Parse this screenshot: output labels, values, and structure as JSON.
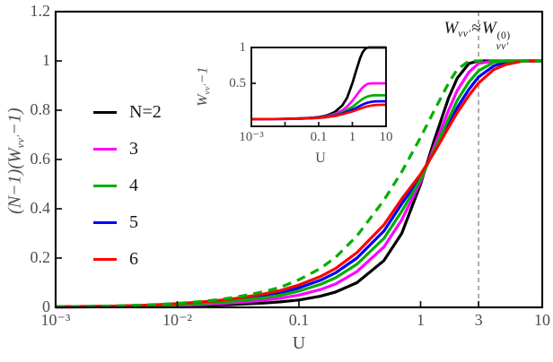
{
  "figure": {
    "background": "#ffffff",
    "axis_color": "#111111",
    "tick_label_color": "#4d4d4d"
  },
  "labels": {
    "main_ylabel": {
      "pre": "(N−1)(W",
      "sub": "νν′",
      "post": "−1)"
    },
    "main_xlabel": "U",
    "inset_ylabel": {
      "pre": "W",
      "sub": "νν′",
      "post": "−1"
    },
    "inset_xlabel": "U"
  },
  "annotation": {
    "w1": "W",
    "sub1": "νν′",
    "approx": "≈",
    "w2": "W",
    "sup2": "(0)",
    "sub2": "νν′"
  },
  "legend": {
    "items": [
      {
        "label": "N=2",
        "color": "#000000"
      },
      {
        "label": "3",
        "color": "#ff00ff"
      },
      {
        "label": "4",
        "color": "#00ae00"
      },
      {
        "label": "5",
        "color": "#0000ff"
      },
      {
        "label": "6",
        "color": "#ff0000"
      }
    ]
  },
  "chart_data": [
    {
      "id": "main",
      "type": "line",
      "title": "",
      "xlabel": "U",
      "ylabel": "(N−1)(Wνν′−1)",
      "xscale": "log",
      "xlim": [
        0.001,
        10
      ],
      "ylim": [
        0,
        1.2
      ],
      "grid": false,
      "legend_position": "upper-left-inside",
      "xticks": [
        {
          "x": 0.001,
          "label": "10⁻³"
        },
        {
          "x": 0.01,
          "label": "10⁻²"
        },
        {
          "x": 0.1,
          "label": "0.1"
        },
        {
          "x": 1,
          "label": "1"
        },
        {
          "x": 3,
          "label": "3"
        },
        {
          "x": 10,
          "label": "10"
        }
      ],
      "yticks": [
        {
          "y": 0,
          "label": "0"
        },
        {
          "y": 0.2,
          "label": "0.2"
        },
        {
          "y": 0.4,
          "label": "0.4"
        },
        {
          "y": 0.6,
          "label": "0.6"
        },
        {
          "y": 0.8,
          "label": "0.8"
        },
        {
          "y": 1,
          "label": "1"
        },
        {
          "y": 1.2,
          "label": "1.2"
        }
      ],
      "guide_line": {
        "x": 3,
        "style": "dashed",
        "color": "#999999"
      },
      "x": [
        0.001,
        0.002,
        0.003,
        0.005,
        0.007,
        0.01,
        0.015,
        0.02,
        0.03,
        0.05,
        0.07,
        0.1,
        0.15,
        0.2,
        0.3,
        0.5,
        0.7,
        1,
        1.3,
        1.7,
        2,
        2.5,
        3,
        4,
        5,
        7,
        10
      ],
      "series": [
        {
          "key": "N2",
          "name": "N=2",
          "color": "#000000",
          "style": "solid",
          "values": [
            0.001,
            0.002,
            0.002,
            0.003,
            0.004,
            0.005,
            0.007,
            0.009,
            0.012,
            0.017,
            0.022,
            0.03,
            0.045,
            0.062,
            0.1,
            0.19,
            0.3,
            0.5,
            0.68,
            0.85,
            0.93,
            0.99,
            1.0,
            1.0,
            1.0,
            1.0,
            1.0
          ]
        },
        {
          "key": "N3",
          "name": "3",
          "color": "#ff00ff",
          "style": "solid",
          "values": [
            0.001,
            0.002,
            0.003,
            0.005,
            0.006,
            0.008,
            0.011,
            0.014,
            0.019,
            0.028,
            0.037,
            0.05,
            0.072,
            0.095,
            0.145,
            0.245,
            0.355,
            0.51,
            0.655,
            0.8,
            0.88,
            0.955,
            0.99,
            1.0,
            1.0,
            1.0,
            1.0
          ]
        },
        {
          "key": "N5",
          "name": "5",
          "color": "#0000ff",
          "style": "solid",
          "values": [
            0.002,
            0.003,
            0.005,
            0.007,
            0.009,
            0.013,
            0.018,
            0.023,
            0.031,
            0.046,
            0.059,
            0.079,
            0.11,
            0.14,
            0.2,
            0.31,
            0.42,
            0.53,
            0.635,
            0.745,
            0.81,
            0.885,
            0.935,
            0.98,
            0.995,
            1.0,
            1.0
          ]
        },
        {
          "key": "N4",
          "name": "4",
          "color": "#00ae00",
          "style": "solid",
          "values": [
            0.002,
            0.003,
            0.004,
            0.006,
            0.008,
            0.011,
            0.015,
            0.019,
            0.026,
            0.038,
            0.049,
            0.066,
            0.093,
            0.12,
            0.175,
            0.28,
            0.39,
            0.52,
            0.64,
            0.765,
            0.84,
            0.915,
            0.96,
            0.995,
            1.0,
            1.0,
            1.0
          ]
        },
        {
          "key": "N6",
          "name": "6",
          "color": "#ff0000",
          "style": "solid",
          "values": [
            0.002,
            0.004,
            0.005,
            0.008,
            0.011,
            0.015,
            0.021,
            0.026,
            0.036,
            0.053,
            0.068,
            0.091,
            0.125,
            0.158,
            0.222,
            0.335,
            0.44,
            0.54,
            0.63,
            0.73,
            0.79,
            0.86,
            0.91,
            0.965,
            0.985,
            1.0,
            1.0
          ]
        },
        {
          "key": "theory-dashed",
          "name": "",
          "color": "#00ae00",
          "style": "dashed",
          "values": [
            0.002,
            0.004,
            0.006,
            0.009,
            0.012,
            0.016,
            0.023,
            0.029,
            0.041,
            0.062,
            0.081,
            0.112,
            0.158,
            0.203,
            0.29,
            0.435,
            0.55,
            0.69,
            0.8,
            0.91,
            0.965,
            1.0,
            1.0,
            1.0,
            1.0,
            1.0,
            1.0
          ]
        }
      ]
    },
    {
      "id": "inset",
      "type": "line",
      "title": "",
      "xlabel": "U",
      "ylabel": "Wνν′−1",
      "xscale": "log",
      "xlim": [
        0.001,
        10
      ],
      "ylim": [
        -0.1,
        1
      ],
      "grid": false,
      "xticks": [
        {
          "x": 0.001,
          "label": "10⁻³"
        },
        {
          "x": 0.01,
          "label": ""
        },
        {
          "x": 0.1,
          "label": "0.1"
        },
        {
          "x": 1,
          "label": "1"
        },
        {
          "x": 10,
          "label": "10"
        }
      ],
      "yticks": [
        {
          "y": 0.5,
          "label": "0.5"
        },
        {
          "y": 1,
          "label": "1"
        }
      ],
      "x": [
        0.001,
        0.002,
        0.003,
        0.005,
        0.007,
        0.01,
        0.015,
        0.02,
        0.03,
        0.05,
        0.07,
        0.1,
        0.15,
        0.2,
        0.3,
        0.5,
        0.7,
        1,
        1.3,
        1.7,
        2,
        2.5,
        3,
        4,
        5,
        7,
        10
      ],
      "series": [
        {
          "key": "N2",
          "name": "N=2",
          "color": "#000000",
          "style": "solid",
          "values": [
            0.001,
            0.002,
            0.002,
            0.003,
            0.004,
            0.005,
            0.007,
            0.009,
            0.012,
            0.017,
            0.022,
            0.03,
            0.045,
            0.062,
            0.1,
            0.19,
            0.3,
            0.5,
            0.68,
            0.85,
            0.93,
            0.99,
            1.0,
            1.0,
            1.0,
            1.0,
            1.0
          ]
        },
        {
          "key": "N3",
          "name": "3",
          "color": "#ff00ff",
          "style": "solid",
          "values": [
            0.001,
            0.001,
            0.002,
            0.003,
            0.003,
            0.004,
            0.006,
            0.007,
            0.01,
            0.014,
            0.019,
            0.025,
            0.036,
            0.048,
            0.073,
            0.123,
            0.178,
            0.255,
            0.328,
            0.4,
            0.44,
            0.478,
            0.495,
            0.5,
            0.5,
            0.5,
            0.5
          ]
        },
        {
          "key": "N4",
          "name": "4",
          "color": "#00ae00",
          "style": "solid",
          "values": [
            0.001,
            0.001,
            0.001,
            0.002,
            0.003,
            0.004,
            0.005,
            0.006,
            0.009,
            0.013,
            0.016,
            0.022,
            0.031,
            0.04,
            0.058,
            0.093,
            0.13,
            0.173,
            0.213,
            0.255,
            0.28,
            0.305,
            0.32,
            0.332,
            0.333,
            0.333,
            0.333
          ]
        },
        {
          "key": "N5",
          "name": "5",
          "color": "#0000ff",
          "style": "solid",
          "values": [
            0.001,
            0.001,
            0.001,
            0.002,
            0.002,
            0.003,
            0.005,
            0.006,
            0.008,
            0.012,
            0.015,
            0.02,
            0.028,
            0.035,
            0.05,
            0.078,
            0.105,
            0.133,
            0.159,
            0.186,
            0.203,
            0.221,
            0.234,
            0.245,
            0.249,
            0.25,
            0.25
          ]
        },
        {
          "key": "N6",
          "name": "6",
          "color": "#ff0000",
          "style": "solid",
          "values": [
            0.0,
            0.001,
            0.001,
            0.002,
            0.002,
            0.003,
            0.004,
            0.005,
            0.007,
            0.011,
            0.014,
            0.018,
            0.025,
            0.032,
            0.044,
            0.067,
            0.088,
            0.108,
            0.126,
            0.146,
            0.158,
            0.172,
            0.182,
            0.193,
            0.197,
            0.2,
            0.2
          ]
        }
      ]
    }
  ]
}
